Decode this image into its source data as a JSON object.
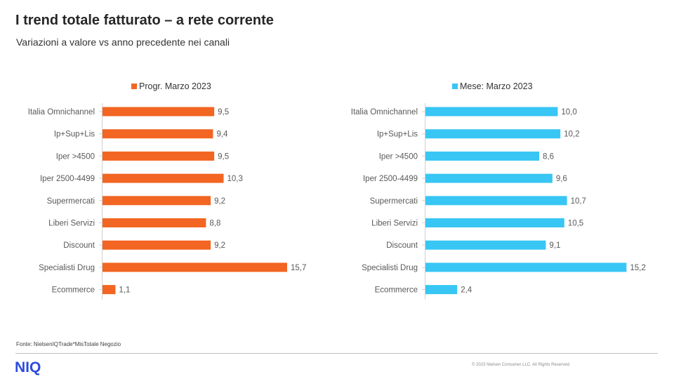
{
  "title": "I trend totale fatturato – a rete corrente",
  "subtitle": "Variazioni a valore vs anno precedente nei canali",
  "source": "Fonte: NielsenIQTrade*MisTotale Negozio",
  "logo": "NIQ",
  "copyright": "© 2023 Nielsen Consumer LLC. All Rights Reserved.",
  "chart_data": [
    {
      "type": "bar",
      "orientation": "horizontal",
      "categories": [
        "Italia Omnichannel",
        "Ip+Sup+Lis",
        "Iper >4500",
        "Iper 2500-4499",
        "Supermercati",
        "Liberi Servizi",
        "Discount",
        "Specialisti Drug",
        "Ecommerce"
      ],
      "series": [
        {
          "name": "Progr. Marzo 2023",
          "values": [
            9.5,
            9.4,
            9.5,
            10.3,
            9.2,
            8.8,
            9.2,
            15.7,
            1.1
          ],
          "labels": [
            "9,5",
            "9,4",
            "9,5",
            "10,3",
            "9,2",
            "8,8",
            "9,2",
            "15,7",
            "1,1"
          ],
          "color": "#f26522"
        }
      ],
      "legend": "top",
      "xlim": [
        0,
        16
      ]
    },
    {
      "type": "bar",
      "orientation": "horizontal",
      "categories": [
        "Italia Omnichannel",
        "Ip+Sup+Lis",
        "Iper >4500",
        "Iper 2500-4499",
        "Supermercati",
        "Liberi Servizi",
        "Discount",
        "Specialisti Drug",
        "Ecommerce"
      ],
      "series": [
        {
          "name": "Mese: Marzo 2023",
          "values": [
            10.0,
            10.2,
            8.6,
            9.6,
            10.7,
            10.5,
            9.1,
            15.2,
            2.4
          ],
          "labels": [
            "10,0",
            "10,2",
            "8,6",
            "9,6",
            "10,7",
            "10,5",
            "9,1",
            "15,2",
            "2,4"
          ],
          "color": "#38c6f4"
        }
      ],
      "legend": "top",
      "xlim": [
        0,
        15.5
      ]
    }
  ]
}
